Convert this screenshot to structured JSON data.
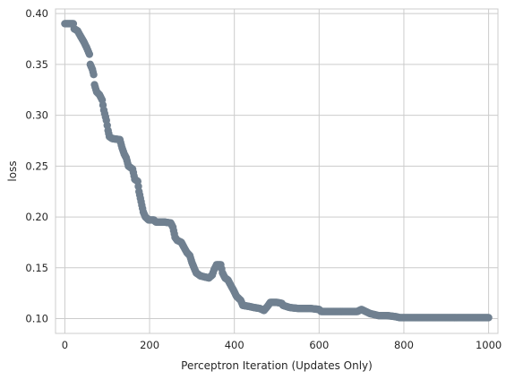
{
  "chart_data": {
    "type": "scatter",
    "title": "",
    "xlabel": "Perceptron Iteration (Updates Only)",
    "ylabel": "loss",
    "xlim": [
      -22,
      1022
    ],
    "ylim": [
      0.0855,
      0.4045
    ],
    "xticks": [
      0,
      200,
      400,
      600,
      800,
      1000
    ],
    "yticks": [
      0.1,
      0.15,
      0.2,
      0.25,
      0.3,
      0.35,
      0.4
    ],
    "xtick_labels": [
      "0",
      "200",
      "400",
      "600",
      "800",
      "1000"
    ],
    "ytick_labels": [
      "0.10",
      "0.15",
      "0.20",
      "0.25",
      "0.30",
      "0.35",
      "0.40"
    ],
    "grid": true,
    "marker_color": "#708090",
    "series": [
      {
        "points": [
          [
            0,
            0.39
          ],
          [
            20,
            0.39
          ],
          [
            22,
            0.385
          ],
          [
            30,
            0.383
          ],
          [
            38,
            0.377
          ],
          [
            45,
            0.372
          ],
          [
            52,
            0.366
          ],
          [
            58,
            0.36
          ],
          [
            60,
            0.35
          ],
          [
            65,
            0.345
          ],
          [
            68,
            0.34
          ],
          [
            70,
            0.33
          ],
          [
            75,
            0.323
          ],
          [
            82,
            0.32
          ],
          [
            88,
            0.315
          ],
          [
            92,
            0.305
          ],
          [
            98,
            0.295
          ],
          [
            102,
            0.285
          ],
          [
            105,
            0.279
          ],
          [
            112,
            0.277
          ],
          [
            130,
            0.276
          ],
          [
            135,
            0.268
          ],
          [
            140,
            0.262
          ],
          [
            145,
            0.258
          ],
          [
            150,
            0.25
          ],
          [
            160,
            0.247
          ],
          [
            165,
            0.237
          ],
          [
            172,
            0.235
          ],
          [
            175,
            0.225
          ],
          [
            180,
            0.215
          ],
          [
            185,
            0.205
          ],
          [
            190,
            0.2
          ],
          [
            198,
            0.197
          ],
          [
            210,
            0.197
          ],
          [
            215,
            0.195
          ],
          [
            235,
            0.195
          ],
          [
            250,
            0.194
          ],
          [
            255,
            0.19
          ],
          [
            260,
            0.18
          ],
          [
            265,
            0.177
          ],
          [
            275,
            0.175
          ],
          [
            280,
            0.171
          ],
          [
            288,
            0.165
          ],
          [
            295,
            0.162
          ],
          [
            300,
            0.155
          ],
          [
            305,
            0.15
          ],
          [
            310,
            0.145
          ],
          [
            320,
            0.142
          ],
          [
            340,
            0.14
          ],
          [
            348,
            0.143
          ],
          [
            352,
            0.148
          ],
          [
            358,
            0.153
          ],
          [
            368,
            0.153
          ],
          [
            372,
            0.145
          ],
          [
            378,
            0.14
          ],
          [
            385,
            0.138
          ],
          [
            390,
            0.134
          ],
          [
            398,
            0.128
          ],
          [
            405,
            0.122
          ],
          [
            415,
            0.118
          ],
          [
            420,
            0.113
          ],
          [
            435,
            0.112
          ],
          [
            445,
            0.111
          ],
          [
            460,
            0.11
          ],
          [
            470,
            0.108
          ],
          [
            478,
            0.112
          ],
          [
            485,
            0.116
          ],
          [
            500,
            0.116
          ],
          [
            512,
            0.115
          ],
          [
            515,
            0.113
          ],
          [
            530,
            0.111
          ],
          [
            550,
            0.11
          ],
          [
            580,
            0.11
          ],
          [
            600,
            0.109
          ],
          [
            605,
            0.107
          ],
          [
            640,
            0.107
          ],
          [
            690,
            0.107
          ],
          [
            700,
            0.109
          ],
          [
            710,
            0.107
          ],
          [
            720,
            0.105
          ],
          [
            740,
            0.103
          ],
          [
            760,
            0.103
          ],
          [
            780,
            0.102
          ],
          [
            790,
            0.101
          ],
          [
            820,
            0.101
          ],
          [
            860,
            0.101
          ],
          [
            900,
            0.101
          ],
          [
            940,
            0.101
          ],
          [
            1000,
            0.101
          ]
        ]
      }
    ]
  }
}
